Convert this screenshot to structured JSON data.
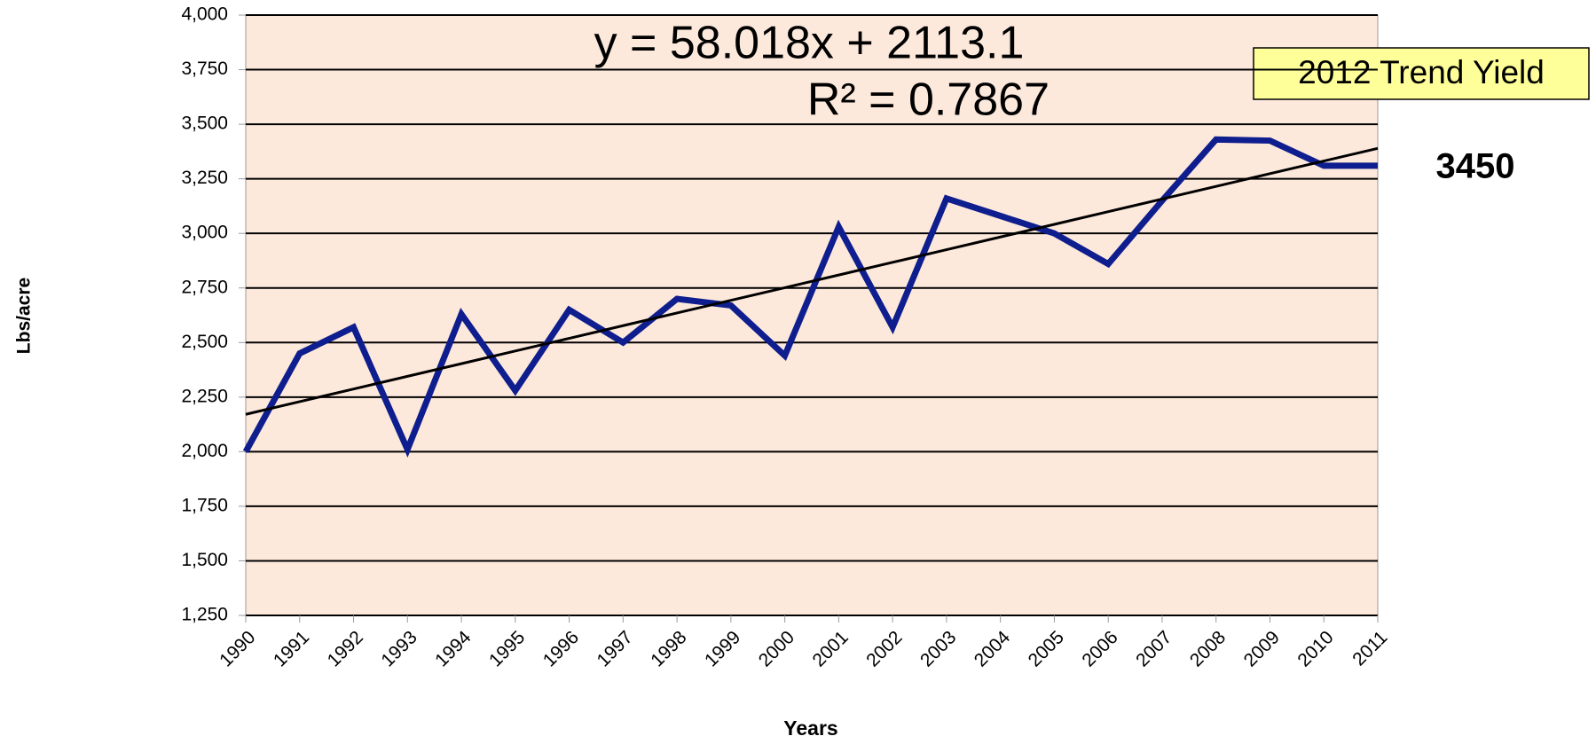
{
  "chart_data": {
    "type": "line",
    "categories": [
      "1990",
      "1991",
      "1992",
      "1993",
      "1994",
      "1995",
      "1996",
      "1997",
      "1998",
      "1999",
      "2000",
      "2001",
      "2002",
      "2003",
      "2004",
      "2005",
      "2006",
      "2007",
      "2008",
      "2009",
      "2010",
      "2011"
    ],
    "series": [
      {
        "color": "#0f1e8e",
        "values": [
          2000,
          2450,
          2570,
          2010,
          2630,
          2280,
          2650,
          2500,
          2700,
          2670,
          2440,
          3030,
          2570,
          3160,
          3080,
          3000,
          2860,
          3150,
          3430,
          3425,
          3310,
          3310
        ]
      }
    ],
    "trendline": {
      "color": "#000000",
      "values": [
        2171.1,
        2229.1,
        2287.2,
        2345.2,
        2403.2,
        2461.2,
        2519.2,
        2577.2,
        2635.3,
        2693.3,
        2751.3,
        2809.3,
        2867.3,
        2925.4,
        2983.4,
        3041.4,
        3099.4,
        3157.4,
        3215.4,
        3273.5,
        3331.5,
        3389.5
      ]
    },
    "equation": "y = 58.018x + 2113.1",
    "r_squared": "R² = 0.7867",
    "callout": "2012 Trend Yield",
    "callout_value": "3450",
    "y_label": "Lbs/acre",
    "x_label": "Years",
    "ylim": [
      1250,
      4000
    ],
    "yticks": [
      {
        "value": 1250,
        "label": "1,250"
      },
      {
        "value": 1500,
        "label": "1,500"
      },
      {
        "value": 1750,
        "label": "1,750"
      },
      {
        "value": 2000,
        "label": "2,000"
      },
      {
        "value": 2250,
        "label": "2,250"
      },
      {
        "value": 2500,
        "label": "2,500"
      },
      {
        "value": 2750,
        "label": "2,750"
      },
      {
        "value": 3000,
        "label": "3,000"
      },
      {
        "value": 3250,
        "label": "3,250"
      },
      {
        "value": 3500,
        "label": "3,500"
      },
      {
        "value": 3750,
        "label": "3,750"
      },
      {
        "value": 4000,
        "label": "4,000"
      }
    ],
    "grid": true,
    "plot_background": "#fde9dc"
  }
}
